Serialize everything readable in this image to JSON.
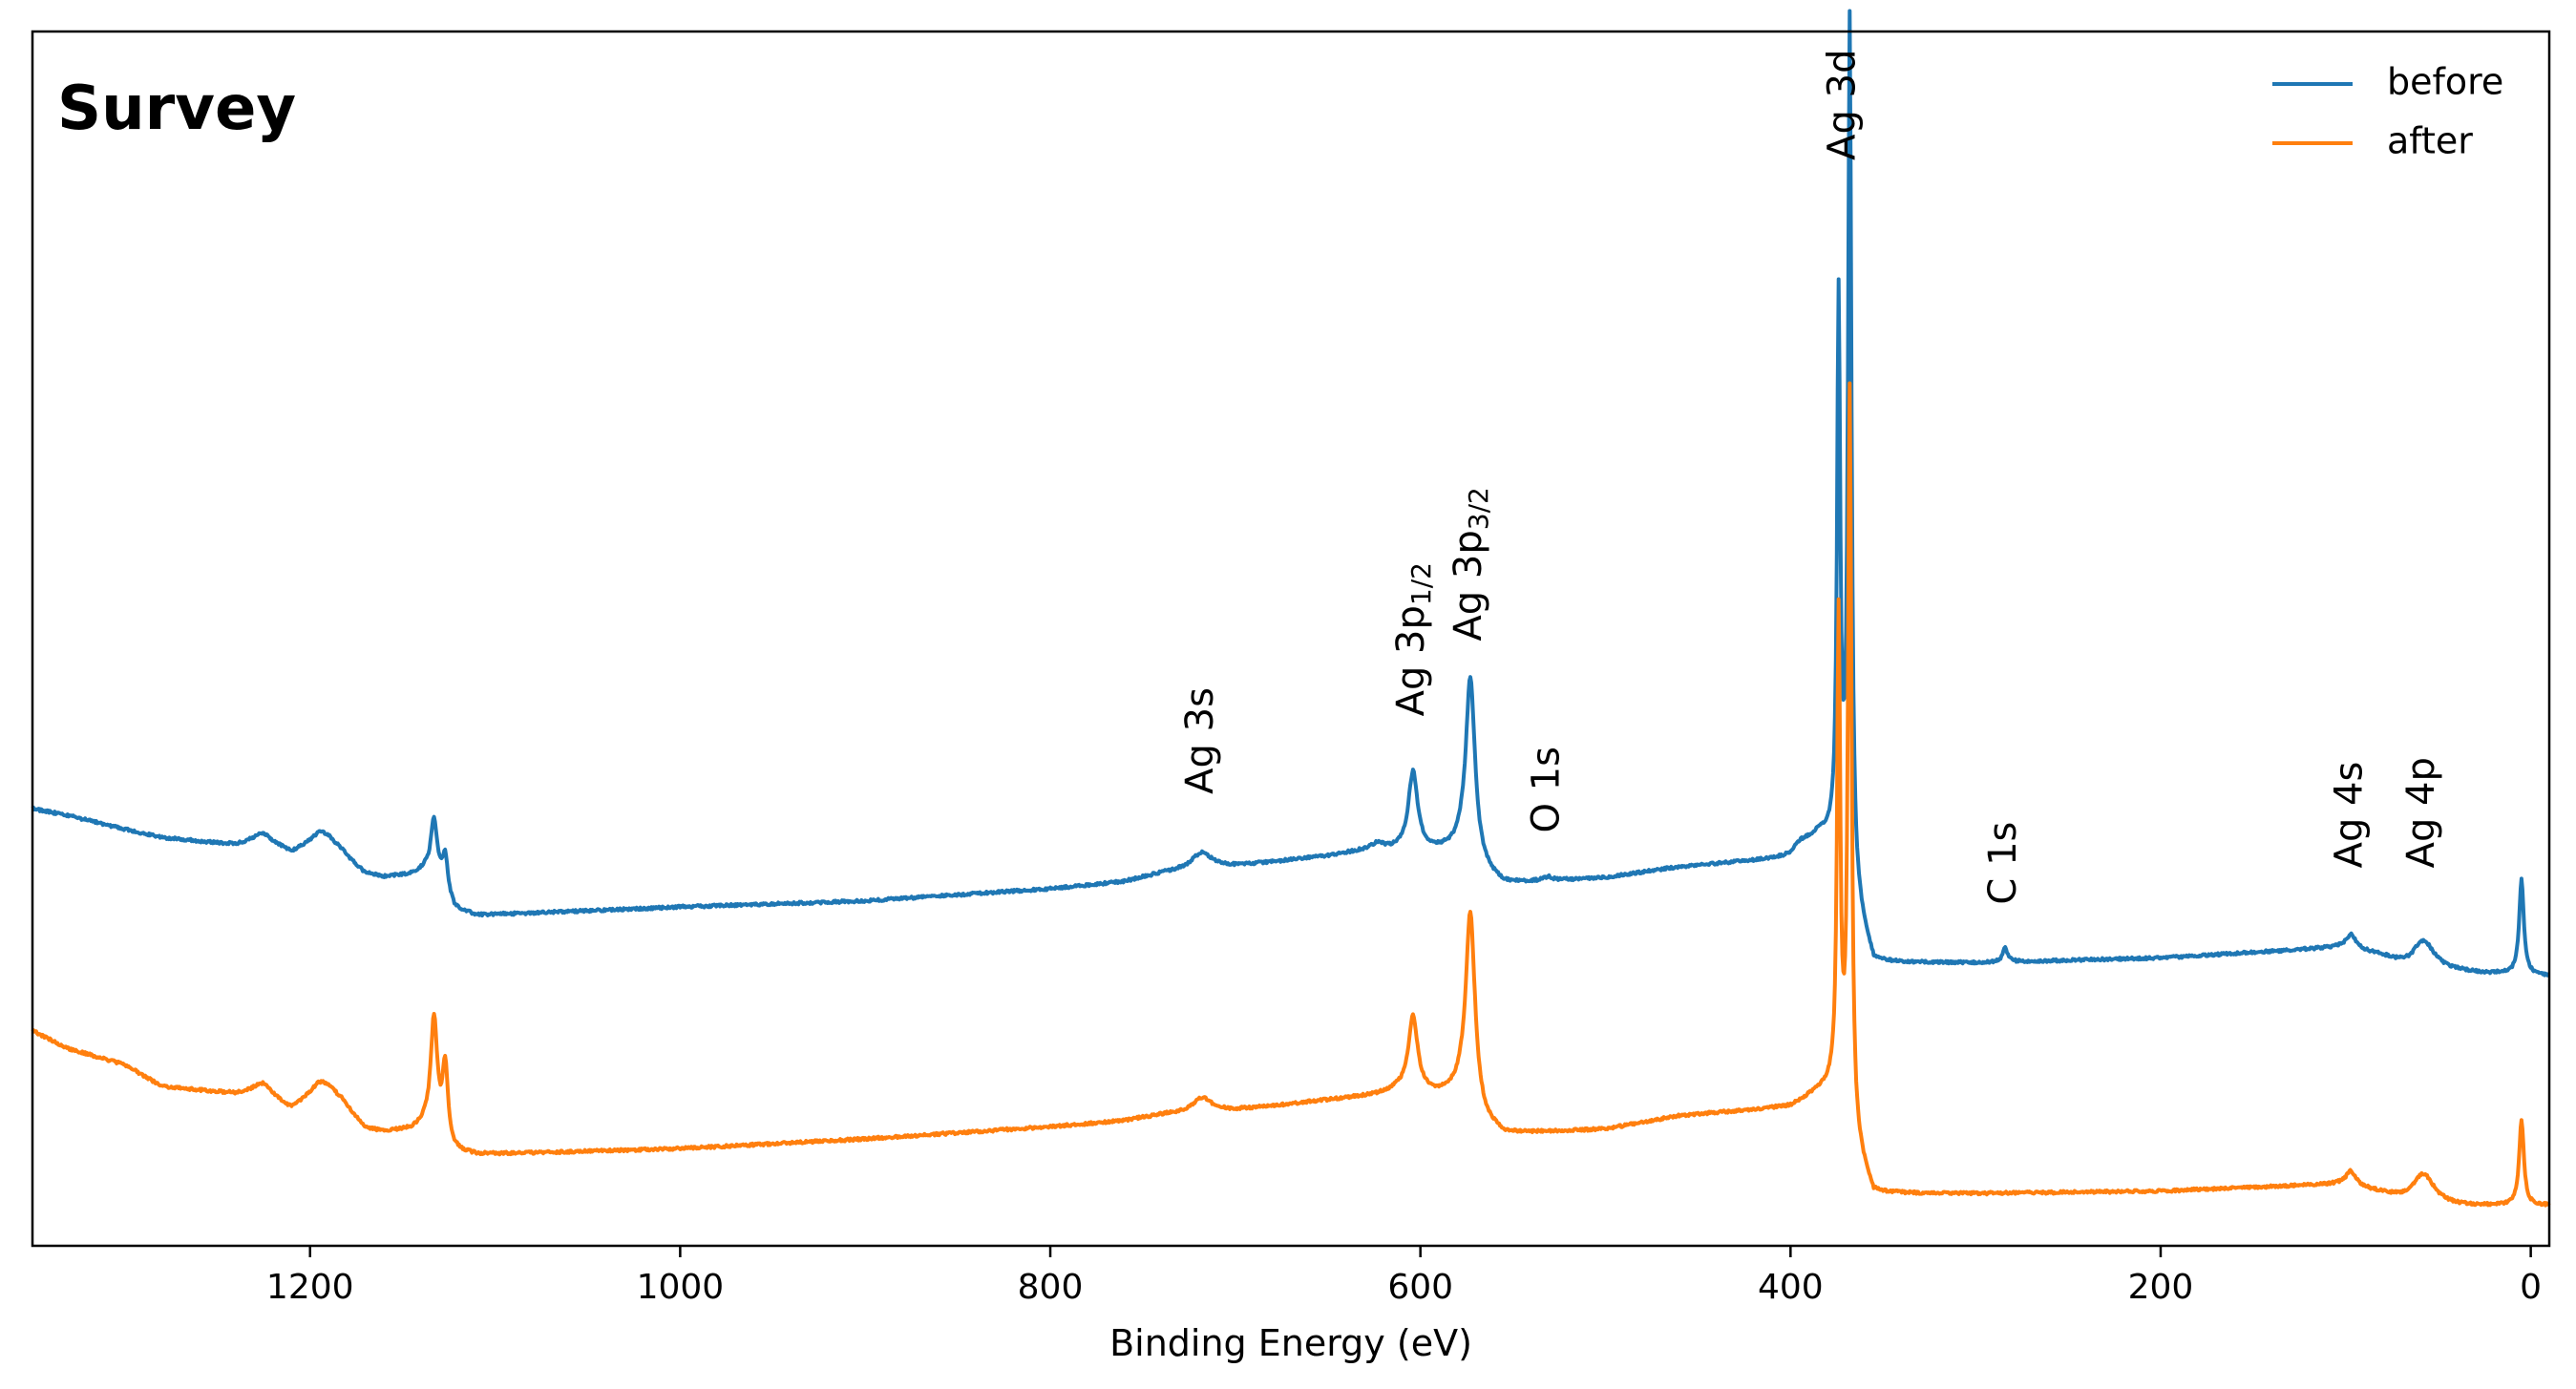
{
  "chart_data": {
    "type": "line",
    "title": "Survey",
    "xlabel": "Binding Energy (eV)",
    "ylabel": "",
    "x_reversed": true,
    "xlim": [
      1350,
      -10
    ],
    "ylim": [
      0,
      100
    ],
    "y_ticks_shown": false,
    "grid": false,
    "legend_position": "top-right",
    "x_ticks": [
      1200,
      1000,
      800,
      600,
      400,
      200,
      0
    ],
    "x_tick_labels": [
      "1200",
      "1000",
      "800",
      "600",
      "400",
      "200",
      "0"
    ],
    "series": [
      {
        "name": "before",
        "color": "#1f77b4",
        "baseline": [
          [
            1350,
            36.0
          ],
          [
            1330,
            35.4
          ],
          [
            1300,
            34.3
          ],
          [
            1280,
            33.6
          ],
          [
            1260,
            33.3
          ],
          [
            1240,
            33.0
          ],
          [
            1225,
            33.4
          ],
          [
            1210,
            32.2
          ],
          [
            1195,
            32.9
          ],
          [
            1182,
            31.9
          ],
          [
            1170,
            30.5
          ],
          [
            1160,
            30.3
          ],
          [
            1145,
            30.5
          ],
          [
            1138,
            30.8
          ],
          [
            1130,
            29.5
          ],
          [
            1122,
            27.7
          ],
          [
            1110,
            27.2
          ],
          [
            1000,
            27.9
          ],
          [
            900,
            28.4
          ],
          [
            800,
            29.4
          ],
          [
            760,
            30.0
          ],
          [
            740,
            30.7
          ],
          [
            720,
            31.2
          ],
          [
            700,
            31.3
          ],
          [
            680,
            31.6
          ],
          [
            650,
            32.1
          ],
          [
            625,
            32.7
          ],
          [
            612,
            32.6
          ],
          [
            590,
            32.5
          ],
          [
            578,
            32.6
          ],
          [
            565,
            30.7
          ],
          [
            555,
            29.8
          ],
          [
            500,
            30.3
          ],
          [
            460,
            31.2
          ],
          [
            420,
            31.7
          ],
          [
            400,
            32.0
          ],
          [
            385,
            33.8
          ],
          [
            378,
            33.5
          ],
          [
            372,
            33.0
          ],
          [
            365,
            28.0
          ],
          [
            355,
            23.3
          ],
          [
            300,
            23.3
          ],
          [
            200,
            23.7
          ],
          [
            100,
            24.6
          ],
          [
            80,
            23.8
          ],
          [
            65,
            22.8
          ],
          [
            40,
            22.6
          ],
          [
            25,
            22.4
          ],
          [
            15,
            22.4
          ],
          [
            -10,
            22.2
          ]
        ],
        "peaks": [
          {
            "be": 1226,
            "height": 0.5,
            "width": 6
          },
          {
            "be": 1192,
            "height": 1.3,
            "width": 10
          },
          {
            "be": 1133,
            "height": 5.0,
            "width": 2.2
          },
          {
            "be": 1127,
            "height": 3.1,
            "width": 1.8
          },
          {
            "be": 718,
            "height": 1.2,
            "width": 6
          },
          {
            "be": 623,
            "height": 0.4,
            "width": 3
          },
          {
            "be": 604,
            "height": 6.4,
            "width": 3.0
          },
          {
            "be": 573,
            "height": 14.9,
            "width": 3.0
          },
          {
            "be": 531,
            "height": 0.3,
            "width": 3
          },
          {
            "be": 395,
            "height": 0.6,
            "width": 5
          },
          {
            "be": 374,
            "height": 44.0,
            "width": 1.0
          },
          {
            "be": 368,
            "height": 70.3,
            "width": 1.1
          },
          {
            "be": 284,
            "height": 1.2,
            "width": 1.5
          },
          {
            "be": 97,
            "height": 1.1,
            "width": 3
          },
          {
            "be": 58,
            "height": 2.4,
            "width": 7
          },
          {
            "be": 5,
            "height": 7.8,
            "width": 1.5
          }
        ]
      },
      {
        "name": "after",
        "color": "#ff7f0e",
        "baseline": [
          [
            1350,
            17.7
          ],
          [
            1330,
            16.2
          ],
          [
            1300,
            14.9
          ],
          [
            1280,
            13.1
          ],
          [
            1260,
            12.8
          ],
          [
            1240,
            12.5
          ],
          [
            1225,
            12.8
          ],
          [
            1210,
            11.1
          ],
          [
            1195,
            12.3
          ],
          [
            1182,
            11.4
          ],
          [
            1170,
            9.5
          ],
          [
            1160,
            9.3
          ],
          [
            1145,
            9.5
          ],
          [
            1138,
            9.8
          ],
          [
            1130,
            8.5
          ],
          [
            1122,
            7.7
          ],
          [
            1110,
            7.5
          ],
          [
            1000,
            8.0
          ],
          [
            900,
            8.8
          ],
          [
            800,
            9.8
          ],
          [
            760,
            10.3
          ],
          [
            740,
            10.8
          ],
          [
            720,
            11.0
          ],
          [
            700,
            11.2
          ],
          [
            680,
            11.5
          ],
          [
            650,
            12.0
          ],
          [
            625,
            12.4
          ],
          [
            612,
            12.8
          ],
          [
            590,
            12.4
          ],
          [
            578,
            12.6
          ],
          [
            565,
            10.0
          ],
          [
            555,
            9.2
          ],
          [
            500,
            9.6
          ],
          [
            460,
            10.7
          ],
          [
            420,
            11.2
          ],
          [
            400,
            11.5
          ],
          [
            385,
            12.7
          ],
          [
            378,
            13.0
          ],
          [
            372,
            12.0
          ],
          [
            365,
            8.0
          ],
          [
            355,
            4.3
          ],
          [
            300,
            4.3
          ],
          [
            200,
            4.5
          ],
          [
            100,
            5.1
          ],
          [
            80,
            4.3
          ],
          [
            65,
            3.6
          ],
          [
            40,
            3.3
          ],
          [
            25,
            3.3
          ],
          [
            15,
            3.3
          ],
          [
            -10,
            3.3
          ]
        ],
        "peaks": [
          {
            "be": 1226,
            "height": 0.5,
            "width": 6
          },
          {
            "be": 1192,
            "height": 1.3,
            "width": 10
          },
          {
            "be": 1133,
            "height": 9.6,
            "width": 2.2
          },
          {
            "be": 1127,
            "height": 6.3,
            "width": 1.8
          },
          {
            "be": 718,
            "height": 1.2,
            "width": 6
          },
          {
            "be": 604,
            "height": 6.2,
            "width": 3.0
          },
          {
            "be": 573,
            "height": 15.8,
            "width": 3.0
          },
          {
            "be": 374,
            "height": 39.0,
            "width": 1.0
          },
          {
            "be": 368,
            "height": 60.2,
            "width": 1.1
          },
          {
            "be": 97,
            "height": 1.1,
            "width": 3
          },
          {
            "be": 58,
            "height": 2.4,
            "width": 7
          },
          {
            "be": 5,
            "height": 7.0,
            "width": 1.5
          }
        ]
      }
    ],
    "annotations": [
      {
        "name": "ag-3s",
        "text": "Ag 3s",
        "sub": "",
        "be": 718,
        "y": 37.2
      },
      {
        "name": "ag-3p12",
        "text": "Ag 3p",
        "sub": "1/2",
        "be": 604,
        "y": 43.6
      },
      {
        "name": "ag-3p32",
        "text": "Ag 3p",
        "sub": "3/2",
        "be": 573,
        "y": 49.8
      },
      {
        "name": "o-1s",
        "text": "O 1s",
        "sub": "",
        "be": 531,
        "y": 34.0
      },
      {
        "name": "ag-3d",
        "text": "Ag 3d",
        "sub": "",
        "be": 371,
        "y": 89.4
      },
      {
        "name": "c-1s",
        "text": "C 1s",
        "sub": "",
        "be": 284,
        "y": 28.1
      },
      {
        "name": "ag-4s",
        "text": "Ag 4s",
        "sub": "",
        "be": 97,
        "y": 31.1
      },
      {
        "name": "ag-4p",
        "text": "Ag 4p",
        "sub": "",
        "be": 58,
        "y": 31.1
      }
    ]
  }
}
